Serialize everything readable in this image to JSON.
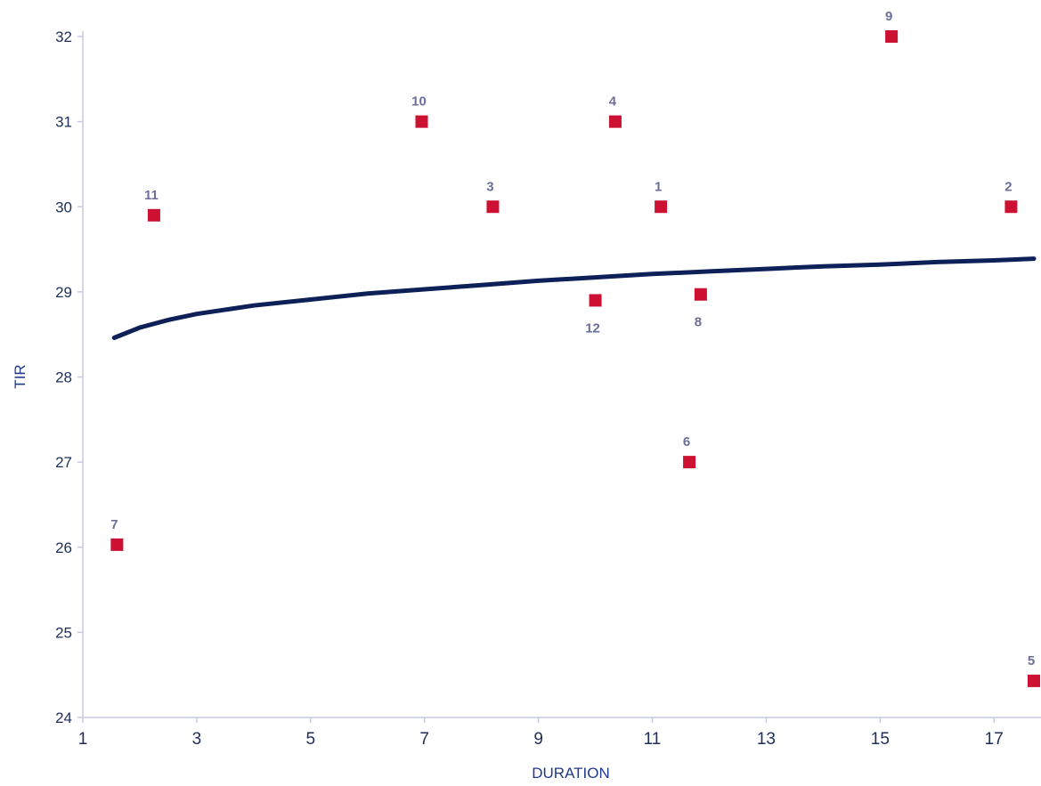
{
  "chart_data": {
    "type": "scatter",
    "title": "",
    "xlabel": "DURATION",
    "ylabel": "TIR",
    "xlim": [
      1,
      17.7
    ],
    "ylim": [
      24,
      32
    ],
    "x_ticks": [
      1,
      3,
      5,
      7,
      9,
      11,
      13,
      15,
      17
    ],
    "y_ticks": [
      24,
      25,
      26,
      27,
      28,
      29,
      30,
      31,
      32
    ],
    "grid": false,
    "points": [
      {
        "label": "1",
        "x": 11.15,
        "y": 30.0,
        "label_pos": "above"
      },
      {
        "label": "2",
        "x": 17.3,
        "y": 30.0,
        "label_pos": "above"
      },
      {
        "label": "3",
        "x": 8.2,
        "y": 30.0,
        "label_pos": "above"
      },
      {
        "label": "4",
        "x": 10.35,
        "y": 31.0,
        "label_pos": "above"
      },
      {
        "label": "5",
        "x": 17.7,
        "y": 24.43,
        "label_pos": "above"
      },
      {
        "label": "6",
        "x": 11.65,
        "y": 27.0,
        "label_pos": "above"
      },
      {
        "label": "7",
        "x": 1.6,
        "y": 26.03,
        "label_pos": "above"
      },
      {
        "label": "8",
        "x": 11.85,
        "y": 28.97,
        "label_pos": "below"
      },
      {
        "label": "9",
        "x": 15.2,
        "y": 32.0,
        "label_pos": "above"
      },
      {
        "label": "10",
        "x": 6.95,
        "y": 31.0,
        "label_pos": "above"
      },
      {
        "label": "11",
        "x": 2.25,
        "y": 29.9,
        "label_pos": "above"
      },
      {
        "label": "12",
        "x": 10.0,
        "y": 28.9,
        "label_pos": "below"
      }
    ],
    "trendline": {
      "type": "logarithmic",
      "x": [
        1.55,
        2,
        2.5,
        3,
        4,
        5,
        6,
        7,
        8,
        9,
        10,
        11,
        12,
        13,
        14,
        15,
        16,
        17,
        17.7
      ],
      "y": [
        28.46,
        28.58,
        28.67,
        28.74,
        28.84,
        28.91,
        28.98,
        29.03,
        29.08,
        29.13,
        29.17,
        29.21,
        29.24,
        29.27,
        29.3,
        29.32,
        29.35,
        29.37,
        29.39
      ]
    },
    "colors": {
      "marker": "#cc1133",
      "trendline": "#0d2057",
      "axis": "#c7c9e6",
      "point_label": "#6b6f9a"
    }
  }
}
